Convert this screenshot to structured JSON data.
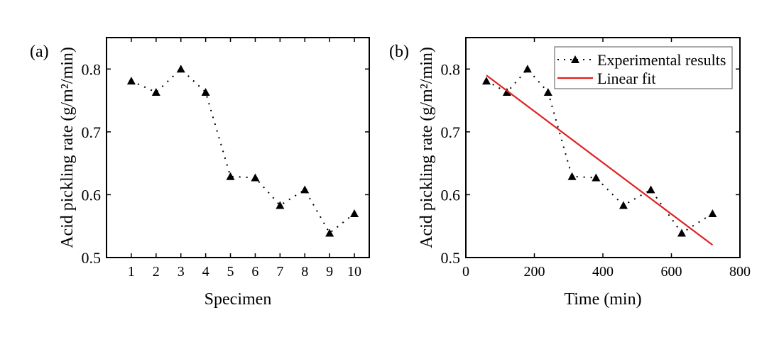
{
  "chart_data": [
    {
      "type": "line",
      "panel_label": "(a)",
      "xlabel": "Specimen",
      "ylabel": "Acid pickling rate (g/m²/min)",
      "xlim": [
        0,
        10.6
      ],
      "ylim": [
        0.5,
        0.85
      ],
      "xticks": [
        1,
        2,
        3,
        4,
        5,
        6,
        7,
        8,
        9,
        10
      ],
      "yticks": [
        0.5,
        0.6,
        0.7,
        0.8
      ],
      "series": [
        {
          "name": "Experimental results",
          "x": [
            1,
            2,
            3,
            4,
            5,
            6,
            7,
            8,
            9,
            10
          ],
          "y": [
            0.781,
            0.763,
            0.8,
            0.763,
            0.629,
            0.627,
            0.583,
            0.608,
            0.539,
            0.57
          ]
        }
      ]
    },
    {
      "type": "line",
      "panel_label": "(b)",
      "xlabel": "Time (min)",
      "ylabel": "Acid pickling rate (g/m²/min)",
      "xlim": [
        0,
        800
      ],
      "ylim": [
        0.5,
        0.85
      ],
      "xticks": [
        0,
        200,
        400,
        600,
        800
      ],
      "yticks": [
        0.5,
        0.6,
        0.7,
        0.8
      ],
      "legend": "top-right",
      "series": [
        {
          "name": "Experimental results",
          "x": [
            60,
            120,
            180,
            240,
            310,
            380,
            460,
            540,
            630,
            720
          ],
          "y": [
            0.781,
            0.763,
            0.8,
            0.763,
            0.629,
            0.627,
            0.583,
            0.608,
            0.539,
            0.57
          ]
        },
        {
          "name": "Linear fit",
          "x": [
            60,
            720
          ],
          "y": [
            0.79,
            0.52
          ],
          "color": "#e02020"
        }
      ]
    }
  ]
}
